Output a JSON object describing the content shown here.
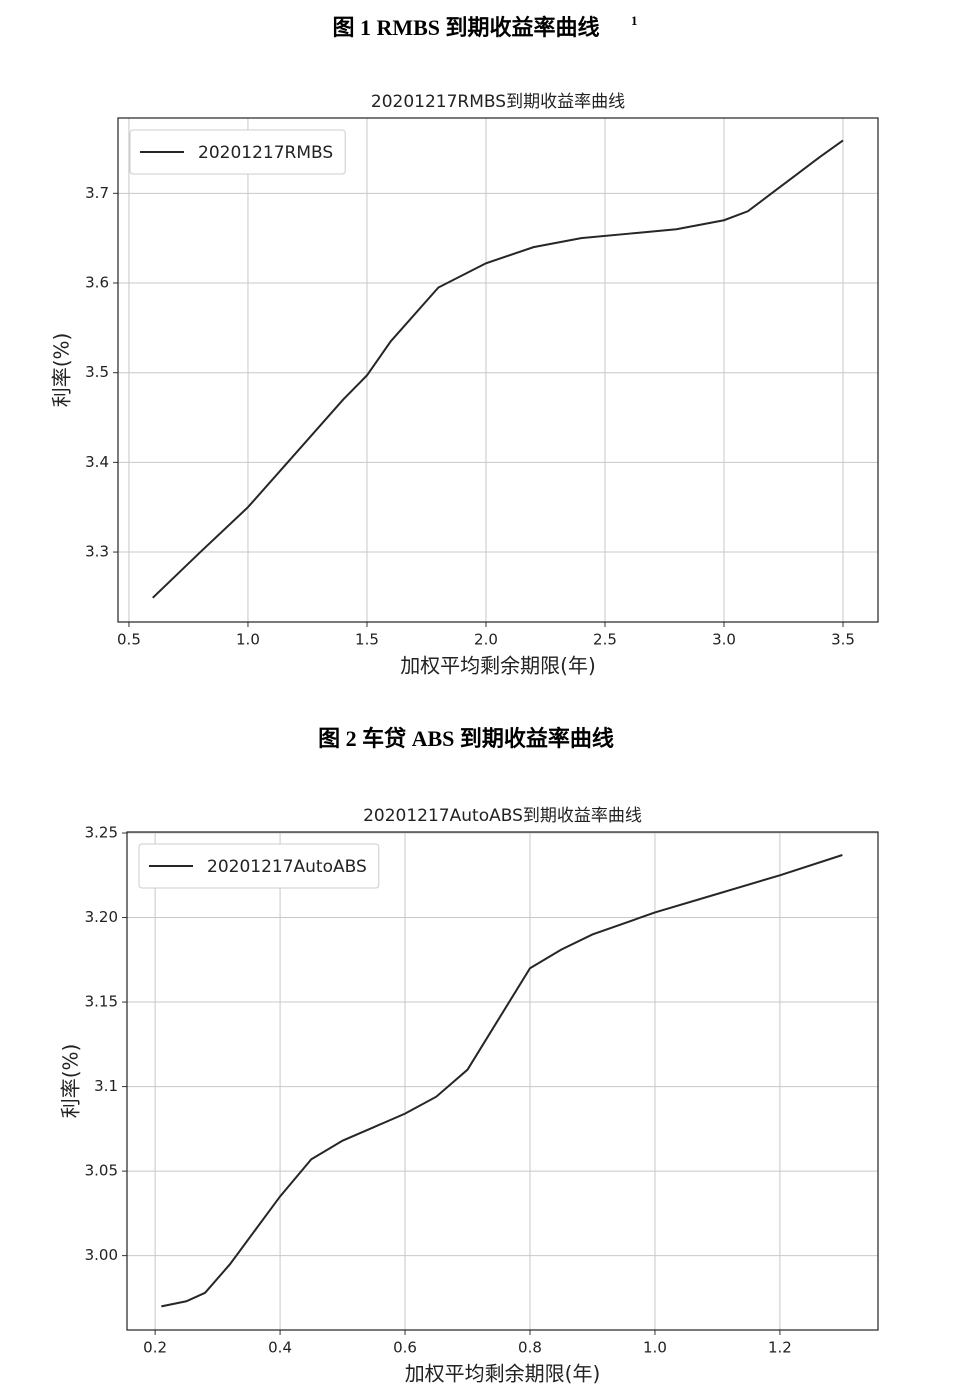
{
  "captions": [
    {
      "text": "图 1 RMBS 到期收益率曲线",
      "footnote_mark": "1"
    },
    {
      "text": "图 2  车贷 ABS 到期收益率曲线"
    }
  ],
  "chart_data": [
    {
      "type": "line",
      "title": "20201217RMBS到期收益率曲线",
      "xlabel": "加权平均剩余期限(年)",
      "ylabel": "利率(%)",
      "x": [
        0.6,
        0.8,
        1.0,
        1.2,
        1.4,
        1.5,
        1.6,
        1.8,
        2.0,
        2.2,
        2.4,
        2.6,
        2.8,
        3.0,
        3.1,
        3.2,
        3.3,
        3.4,
        3.5
      ],
      "series": [
        {
          "name": "20201217RMBS",
          "color": "#262626",
          "values": [
            3.249,
            3.3,
            3.35,
            3.41,
            3.47,
            3.497,
            3.535,
            3.595,
            3.622,
            3.64,
            3.65,
            3.655,
            3.66,
            3.67,
            3.68,
            3.7,
            3.72,
            3.74,
            3.759
          ]
        }
      ],
      "xlim": [
        0.454,
        3.647
      ],
      "ylim": [
        3.222,
        3.784
      ],
      "xticks": [
        0.5,
        {
          "value": 1,
          "label": "1.0"
        },
        1.5,
        {
          "value": 2,
          "label": "2.0"
        },
        2.5,
        {
          "value": 3,
          "label": "3.0"
        },
        3.5
      ],
      "yticks": [
        3.3,
        3.4,
        3.5,
        3.6,
        3.7
      ],
      "grid": true,
      "legend": "upper left"
    },
    {
      "type": "line",
      "title": "20201217AutoABS到期收益率曲线",
      "xlabel": "加权平均剩余期限(年)",
      "ylabel": "利率(%)",
      "x": [
        0.21,
        0.25,
        0.28,
        0.32,
        0.36,
        0.4,
        0.45,
        0.5,
        0.55,
        0.6,
        0.65,
        0.7,
        0.75,
        0.8,
        0.85,
        0.9,
        1.0,
        1.1,
        1.2,
        1.3
      ],
      "series": [
        {
          "name": "20201217AutoABS",
          "color": "#262626",
          "values": [
            2.97,
            2.973,
            2.978,
            2.995,
            3.015,
            3.035,
            3.057,
            3.068,
            3.076,
            3.084,
            3.094,
            3.11,
            3.14,
            3.17,
            3.181,
            3.19,
            3.203,
            3.214,
            3.225,
            3.237
          ]
        }
      ],
      "xlim": [
        0.155,
        1.357
      ],
      "ylim": [
        2.956,
        3.2506
      ],
      "xticks": [
        0.2,
        0.4,
        0.6,
        0.8,
        {
          "value": 1,
          "label": "1.0"
        },
        1.2
      ],
      "yticks": [
        {
          "value": 3,
          "label": "3.00"
        },
        3.05,
        3.1,
        3.15,
        {
          "value": 3.2,
          "label": "3.20"
        },
        3.25
      ],
      "grid": true,
      "legend": "upper left"
    }
  ]
}
